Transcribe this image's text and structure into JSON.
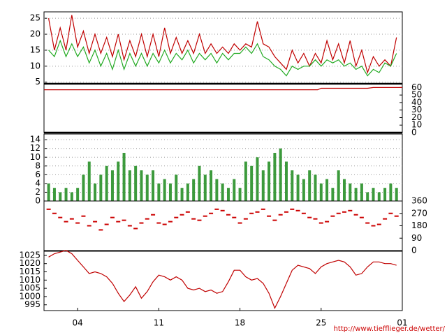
{
  "chart_data": [
    {
      "type": "line",
      "grid": true,
      "xlim": [
        1.1,
        32
      ],
      "ylim": [
        4.5,
        27
      ],
      "yticks": [
        5,
        10,
        15,
        20,
        25
      ],
      "x": [
        1.5,
        2,
        2.5,
        3,
        3.5,
        4,
        4.5,
        5,
        5.5,
        6,
        6.5,
        7,
        7.5,
        8,
        8.5,
        9,
        9.5,
        10,
        10.5,
        11,
        11.5,
        12,
        12.5,
        13,
        13.5,
        14,
        14.5,
        15,
        15.5,
        16,
        16.5,
        17,
        17.5,
        18,
        18.5,
        19,
        19.5,
        20,
        20.5,
        21,
        21.5,
        22,
        22.5,
        23,
        23.5,
        24,
        24.5,
        25,
        25.5,
        26,
        26.5,
        27,
        27.5,
        28,
        28.5,
        29,
        29.5,
        30,
        30.5,
        31,
        31.5
      ],
      "series": [
        {
          "color": "#c00000",
          "values": [
            25,
            15,
            22,
            15,
            26,
            16,
            21,
            14,
            20,
            14,
            19,
            13,
            20,
            12,
            18,
            13,
            20,
            13,
            20,
            13,
            22,
            14,
            19,
            14,
            18,
            14,
            20,
            14,
            17,
            14,
            16,
            14,
            17,
            15,
            17,
            16,
            24,
            17,
            16,
            13,
            11,
            9,
            15,
            11,
            14,
            10,
            14,
            11,
            18,
            12,
            17,
            11,
            18,
            10,
            15,
            8,
            13,
            10,
            12,
            10,
            19
          ]
        },
        {
          "color": "#22aa22",
          "values": [
            15,
            13,
            18,
            13,
            17,
            13,
            16,
            11,
            15,
            10,
            14,
            9,
            15,
            9,
            14,
            10,
            14,
            10,
            14,
            11,
            15,
            11,
            14,
            12,
            15,
            11,
            14,
            12,
            14,
            11,
            14,
            12,
            14,
            14,
            16,
            14,
            17,
            13,
            12,
            10,
            9,
            7,
            10,
            9,
            10,
            10,
            12,
            10,
            12,
            11,
            12,
            10,
            11,
            9,
            10,
            7,
            9,
            8,
            11,
            10,
            14
          ]
        }
      ]
    },
    {
      "type": "line",
      "xlim": [
        1.1,
        32
      ],
      "y2lim": [
        0,
        65
      ],
      "y2ticks": [
        0,
        10,
        20,
        30,
        40,
        50,
        60
      ],
      "x": [
        1.1,
        24.7,
        25,
        29,
        29.5,
        32
      ],
      "series": [
        {
          "color": "#c00000",
          "axis": "y2",
          "values": [
            57,
            57,
            59,
            59,
            60,
            60
          ]
        }
      ]
    },
    {
      "type": "bar",
      "grid": true,
      "xlim": [
        1.1,
        32
      ],
      "ylim": [
        0,
        15.3
      ],
      "yticks": [
        0,
        2,
        4,
        6,
        8,
        10,
        12,
        14
      ],
      "x": [
        1.5,
        2,
        2.5,
        3,
        3.5,
        4,
        4.5,
        5,
        5.5,
        6,
        6.5,
        7,
        7.5,
        8,
        8.5,
        9,
        9.5,
        10,
        10.5,
        11,
        11.5,
        12,
        12.5,
        13,
        13.5,
        14,
        14.5,
        15,
        15.5,
        16,
        16.5,
        17,
        17.5,
        18,
        18.5,
        19,
        19.5,
        20,
        20.5,
        21,
        21.5,
        22,
        22.5,
        23,
        23.5,
        24,
        24.5,
        25,
        25.5,
        26,
        26.5,
        27,
        27.5,
        28,
        28.5,
        29,
        29.5,
        30,
        30.5,
        31,
        31.5
      ],
      "series": [
        {
          "color": "#3c9a3c",
          "values": [
            4,
            3,
            2,
            3,
            2,
            3,
            6,
            9,
            4,
            6,
            8,
            7,
            9,
            11,
            7,
            8,
            7,
            6,
            7,
            4,
            5,
            4,
            6,
            3,
            4,
            5,
            8,
            6,
            7,
            5,
            4,
            3,
            5,
            3,
            9,
            8,
            10,
            7,
            9,
            11,
            12,
            9,
            7,
            6,
            5,
            7,
            6,
            4,
            5,
            3,
            7,
            5,
            4,
            3,
            4,
            2,
            3,
            2,
            3,
            4,
            3
          ]
        }
      ]
    },
    {
      "type": "scatter",
      "xlim": [
        1.1,
        32
      ],
      "y2lim": [
        0,
        360
      ],
      "y2ticks": [
        0,
        90,
        180,
        270,
        360
      ],
      "x": [
        1.5,
        2,
        2.5,
        3,
        3.5,
        4,
        4.5,
        5,
        5.5,
        6,
        6.5,
        7,
        7.5,
        8,
        8.5,
        9,
        9.5,
        10,
        10.5,
        11,
        11.5,
        12,
        12.5,
        13,
        13.5,
        14,
        14.5,
        15,
        15.5,
        16,
        16.5,
        17,
        17.5,
        18,
        18.5,
        19,
        19.5,
        20,
        20.5,
        21,
        21.5,
        22,
        22.5,
        23,
        23.5,
        24,
        24.5,
        25,
        25.5,
        26,
        26.5,
        27,
        27.5,
        28,
        28.5,
        29,
        29.5,
        30,
        30.5,
        31,
        31.5
      ],
      "series": [
        {
          "color": "#cc0000",
          "axis": "y2",
          "values": [
            300,
            270,
            240,
            210,
            230,
            200,
            250,
            180,
            210,
            150,
            190,
            240,
            210,
            220,
            180,
            160,
            200,
            230,
            260,
            200,
            190,
            210,
            240,
            260,
            280,
            230,
            220,
            250,
            270,
            300,
            290,
            260,
            240,
            200,
            230,
            270,
            280,
            300,
            250,
            220,
            260,
            280,
            300,
            290,
            270,
            240,
            230,
            200,
            210,
            250,
            270,
            280,
            290,
            260,
            240,
            200,
            180,
            190,
            230,
            270,
            250
          ]
        }
      ]
    },
    {
      "type": "line",
      "xlim": [
        1.1,
        32
      ],
      "ylim": [
        991.5,
        1027.5
      ],
      "yticks": [
        995,
        1000,
        1005,
        1010,
        1015,
        1020,
        1025
      ],
      "xticks": [
        {
          "value": 4,
          "label": "04"
        },
        11,
        18,
        25,
        {
          "value": 32,
          "label": "01"
        }
      ],
      "x": [
        1.5,
        2,
        2.5,
        3,
        3.5,
        4,
        4.5,
        5,
        5.5,
        6,
        6.5,
        7,
        7.5,
        8,
        8.5,
        9,
        9.5,
        10,
        10.5,
        11,
        11.5,
        12,
        12.5,
        13,
        13.5,
        14,
        14.5,
        15,
        15.5,
        16,
        16.5,
        17,
        17.5,
        18,
        18.5,
        19,
        19.5,
        20,
        20.5,
        21,
        21.5,
        22,
        22.5,
        23,
        23.5,
        24,
        24.5,
        25,
        25.5,
        26,
        26.5,
        27,
        27.5,
        28,
        28.5,
        29,
        29.5,
        30,
        30.5,
        31,
        31.5
      ],
      "series": [
        {
          "color": "#c00000",
          "values": [
            1024,
            1026,
            1027,
            1028,
            1026,
            1022,
            1018,
            1014,
            1015,
            1014,
            1012,
            1008,
            1002,
            997,
            1001,
            1006,
            999,
            1003,
            1009,
            1013,
            1012,
            1010,
            1012,
            1010,
            1005,
            1004,
            1005,
            1003,
            1004,
            1002,
            1003,
            1009,
            1016,
            1016,
            1012,
            1010,
            1011,
            1008,
            1002,
            993,
            1000,
            1008,
            1016,
            1019,
            1018,
            1017,
            1014,
            1018,
            1020,
            1021,
            1022,
            1021,
            1018,
            1013,
            1014,
            1018,
            1021,
            1021,
            1020,
            1020,
            1019
          ]
        }
      ]
    }
  ],
  "credit": "http://www.tiefflieger.de/wetter/"
}
